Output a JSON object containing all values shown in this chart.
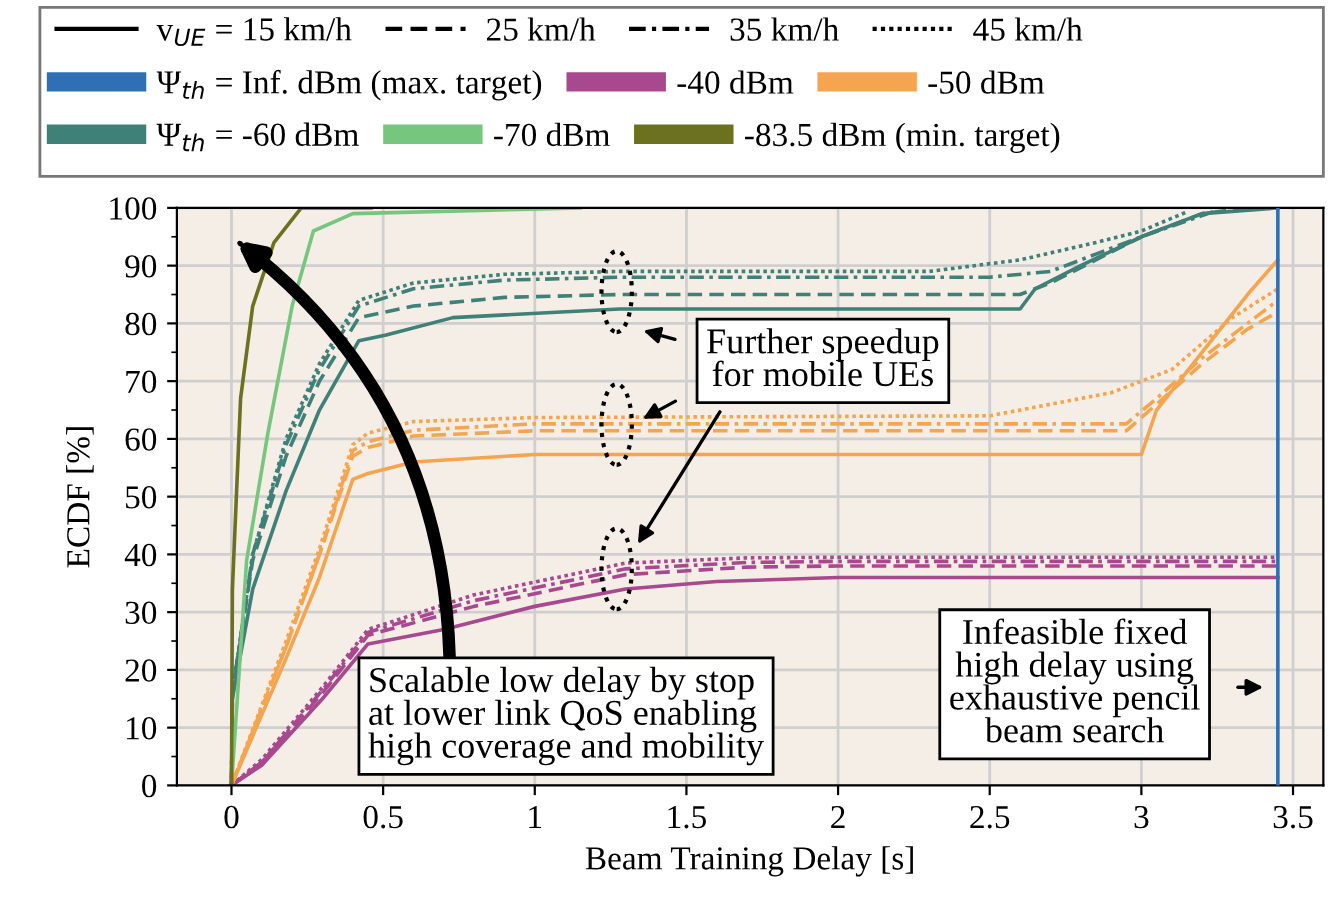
{
  "chart_data": {
    "type": "line",
    "xlabel": "Beam Training Delay [s]",
    "ylabel": "ECDF [%]",
    "xlim": [
      -0.18,
      3.6
    ],
    "ylim": [
      0,
      100
    ],
    "xticks": [
      0,
      0.5,
      1,
      1.5,
      2,
      2.5,
      3,
      3.5
    ],
    "yticks": [
      0,
      {
        "value": 5,
        "label": null
      },
      10,
      {
        "value": 15,
        "label": null
      },
      20,
      {
        "value": 25,
        "label": null
      },
      30,
      {
        "value": 35,
        "label": null
      },
      40,
      {
        "value": 45,
        "label": null
      },
      50,
      {
        "value": 55,
        "label": null
      },
      60,
      {
        "value": 65,
        "label": null
      },
      70,
      {
        "value": 75,
        "label": null
      },
      80,
      {
        "value": 85,
        "label": null
      },
      90,
      {
        "value": 95,
        "label": null
      },
      100
    ],
    "grid": true,
    "legend": "top",
    "marker": "none",
    "annotations": [
      "v$_{UE}$ = 15 km/h",
      "25 km/h",
      "35 km/h",
      "45 km/h",
      "Further speedup\nfor mobile UEs",
      "Scalable low delay by stop\nat lower link QoS enabling\nhigh coverage and mobility",
      "Infeasible fixed\nhigh delay using\nexhaustive pencil\nbeam search"
    ],
    "series": [
      {
        "name": "Ψ$_{th}$ = Inf. dBm (max. target)",
        "color": "#2f6fb5",
        "line_style": "solid",
        "x": [
          3.45,
          3.45
        ],
        "values": [
          0,
          100
        ]
      },
      {
        "name": "-40 dBm",
        "color": "#a8488e",
        "line_style": "solid",
        "x": [
          0,
          0.1,
          0.3,
          0.45,
          0.7,
          1.0,
          1.3,
          1.6,
          2.0,
          3.45
        ],
        "values": [
          0,
          3.5,
          15,
          24.5,
          27,
          31,
          34,
          35.3,
          36,
          36
        ]
      },
      {
        "color": "#a8488e",
        "line_style": "dashed",
        "x": [
          0,
          0.1,
          0.3,
          0.45,
          0.8,
          1.3,
          1.7,
          2.0,
          3.45
        ],
        "values": [
          0,
          4,
          16,
          26,
          31,
          36.5,
          37.8,
          38,
          38
        ]
      },
      {
        "color": "#a8488e",
        "line_style": "dashdot",
        "x": [
          0,
          0.1,
          0.3,
          0.45,
          0.8,
          1.3,
          1.7,
          2.0,
          3.45
        ],
        "values": [
          0,
          4,
          16.5,
          26.5,
          32,
          37.5,
          38.6,
          38.8,
          38.8
        ]
      },
      {
        "color": "#a8488e",
        "line_style": "dotted",
        "x": [
          0,
          0.1,
          0.3,
          0.45,
          0.8,
          1.3,
          1.7,
          2.0,
          3.45
        ],
        "values": [
          0,
          4.5,
          17,
          27,
          33,
          38.5,
          39.4,
          39.5,
          39.5
        ]
      },
      {
        "name": "-50 dBm",
        "color": "#f5a54f",
        "line_style": "solid",
        "x": [
          0,
          0.18,
          0.29,
          0.4,
          0.45,
          0.6,
          1.0,
          3.0,
          3.05,
          3.2,
          3.35,
          3.45
        ],
        "values": [
          0,
          22,
          36,
          53,
          54,
          56,
          57.3,
          57.3,
          65,
          75,
          85,
          91
        ]
      },
      {
        "color": "#f5a54f",
        "line_style": "dashed",
        "x": [
          0,
          0.18,
          0.29,
          0.4,
          0.45,
          0.6,
          1.0,
          2.95,
          3.05,
          3.2,
          3.35,
          3.45
        ],
        "values": [
          0,
          24,
          40,
          57,
          58.5,
          60.5,
          61.4,
          61.4,
          66,
          73,
          79,
          82
        ]
      },
      {
        "color": "#f5a54f",
        "line_style": "dashdot",
        "x": [
          0,
          0.18,
          0.29,
          0.4,
          0.45,
          0.6,
          1.0,
          2.95,
          3.05,
          3.2,
          3.35,
          3.45
        ],
        "values": [
          0,
          24,
          40,
          58,
          59.5,
          61.5,
          62.6,
          62.6,
          67,
          74,
          80,
          84
        ]
      },
      {
        "color": "#f5a54f",
        "line_style": "dotted",
        "x": [
          0,
          0.18,
          0.29,
          0.4,
          0.45,
          0.6,
          1.0,
          2.5,
          2.9,
          3.1,
          3.3,
          3.45
        ],
        "values": [
          0,
          25,
          41,
          59,
          61,
          63,
          63.7,
          64,
          68,
          72,
          81,
          86
        ]
      },
      {
        "name": "Ψ$_{th}$ = -60 dBm",
        "color": "#3f8078",
        "line_style": "solid",
        "x": [
          0,
          0.003,
          0.07,
          0.18,
          0.29,
          0.42,
          0.51,
          0.73,
          1.28,
          2.6,
          2.65,
          2.8,
          3.0,
          3.2,
          3.45
        ],
        "values": [
          0,
          15,
          34,
          51,
          65,
          77,
          78,
          81,
          82.5,
          82.5,
          86,
          90,
          95,
          99,
          100
        ]
      },
      {
        "color": "#3f8078",
        "line_style": "dashed",
        "x": [
          0,
          0.003,
          0.07,
          0.18,
          0.29,
          0.42,
          0.6,
          0.9,
          1.28,
          2.6,
          2.7,
          2.85,
          3.0,
          3.2,
          3.35
        ],
        "values": [
          0,
          16,
          39,
          57,
          70,
          81,
          83,
          84.5,
          85,
          85,
          87,
          91,
          95,
          99,
          100
        ]
      },
      {
        "color": "#3f8078",
        "line_style": "dashdot",
        "x": [
          0,
          0.003,
          0.07,
          0.18,
          0.29,
          0.42,
          0.6,
          0.9,
          1.28,
          2.5,
          2.7,
          2.85,
          3.0,
          3.25
        ],
        "values": [
          0,
          16,
          40,
          59,
          72,
          83,
          86,
          87.5,
          88,
          88,
          89,
          92,
          95,
          99.6
        ]
      },
      {
        "color": "#3f8078",
        "line_style": "dotted",
        "x": [
          0,
          0.003,
          0.07,
          0.18,
          0.29,
          0.42,
          0.6,
          0.9,
          1.28,
          2.3,
          2.6,
          2.85,
          3.0,
          3.15
        ],
        "values": [
          0,
          16,
          40,
          60,
          73,
          84,
          87,
          88.5,
          89,
          89,
          91,
          94,
          96,
          99.3
        ]
      },
      {
        "name": "-70 dBm",
        "color": "#77c67f",
        "line_style": "solid",
        "x": [
          0,
          0.05,
          0.12,
          0.2,
          0.27,
          0.4,
          1.15
        ],
        "values": [
          0,
          39,
          61,
          83,
          96,
          99,
          100
        ]
      },
      {
        "name": "-83.5 dBm (min. target)",
        "color": "#6b711e",
        "line_style": "solid",
        "x": [
          0,
          0.003,
          0.03,
          0.07,
          0.14,
          0.23,
          0.46
        ],
        "values": [
          0,
          34,
          67,
          83,
          94,
          100,
          100
        ]
      }
    ]
  }
}
